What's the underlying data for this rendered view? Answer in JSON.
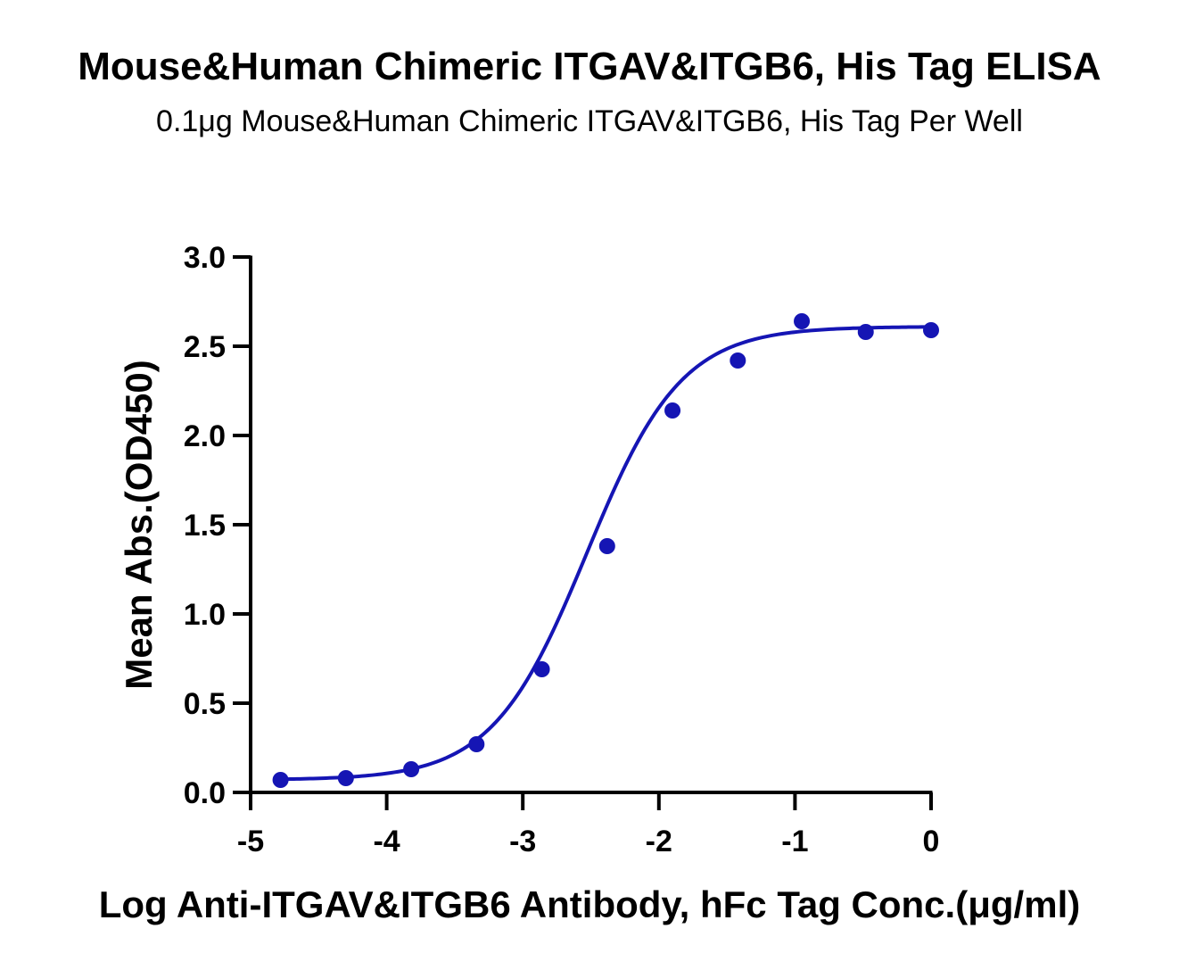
{
  "chart_data": {
    "type": "scatter",
    "title": "Mouse&Human Chimeric ITGAV&ITGB6, His Tag ELISA",
    "subtitle": "0.1μg Mouse&Human Chimeric ITGAV&ITGB6, His Tag Per Well",
    "xlabel": "Log Anti-ITGAV&ITGB6 Antibody, hFc Tag Conc.(μg/ml)",
    "ylabel": "Mean Abs.(OD450)",
    "xlim": [
      -5,
      0
    ],
    "ylim": [
      0,
      3.0
    ],
    "xticks": [
      "-5",
      "-4",
      "-3",
      "-2",
      "-1",
      "0"
    ],
    "yticks": [
      "0.0",
      "0.5",
      "1.0",
      "1.5",
      "2.0",
      "2.5",
      "3.0"
    ],
    "grid": false,
    "series": [
      {
        "color": "#1515b4",
        "points": [
          {
            "x": -4.78,
            "y": 0.07
          },
          {
            "x": -4.3,
            "y": 0.08
          },
          {
            "x": -3.82,
            "y": 0.13
          },
          {
            "x": -3.34,
            "y": 0.27
          },
          {
            "x": -2.86,
            "y": 0.69
          },
          {
            "x": -2.38,
            "y": 1.38
          },
          {
            "x": -1.9,
            "y": 2.14
          },
          {
            "x": -1.42,
            "y": 2.42
          },
          {
            "x": -0.95,
            "y": 2.64
          },
          {
            "x": -0.48,
            "y": 2.58
          },
          {
            "x": 0.0,
            "y": 2.59
          }
        ],
        "fit_curve": {
          "model": "4PL",
          "bottom": 0.07,
          "top": 2.61,
          "log_ec50": -2.53,
          "hill_slope": 1.25
        }
      }
    ]
  }
}
